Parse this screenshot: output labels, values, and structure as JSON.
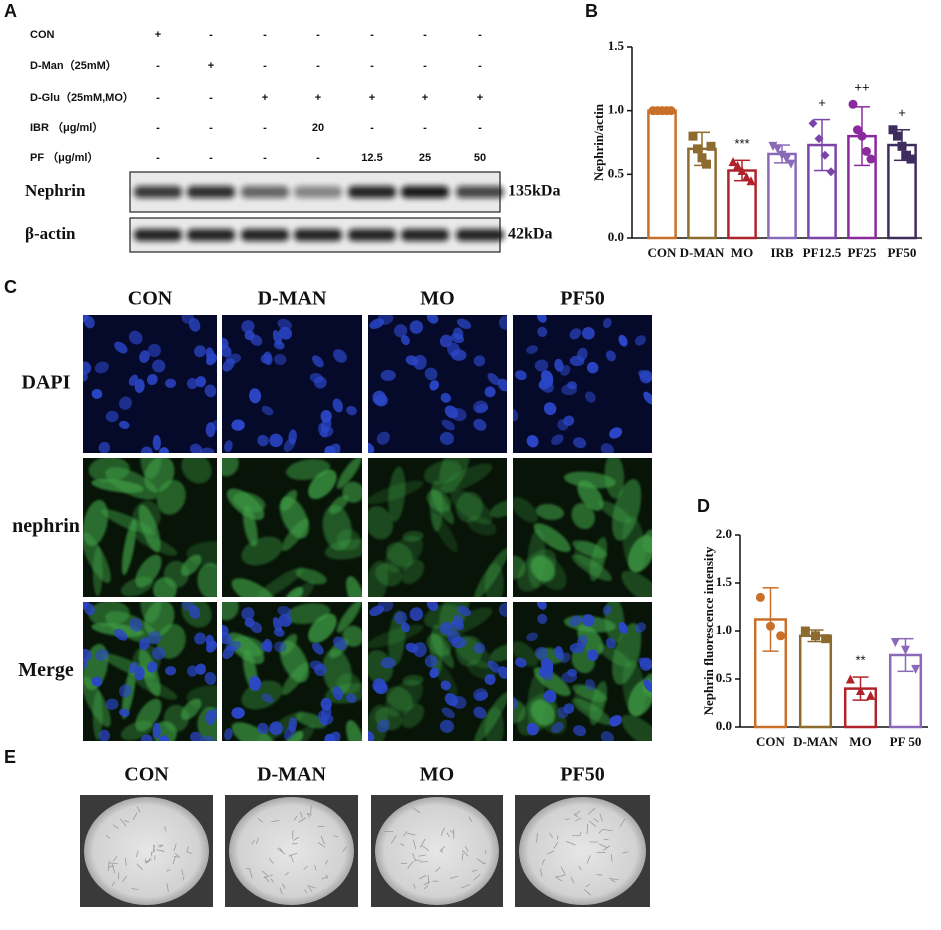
{
  "panel_a": {
    "label": "A",
    "treatments": [
      {
        "name": "CON",
        "cells": [
          "+",
          "-",
          "-",
          "-",
          "-",
          "-",
          "-"
        ]
      },
      {
        "name": "D-Man（25mM）",
        "cells": [
          "-",
          "+",
          "-",
          "-",
          "-",
          "-",
          "-"
        ]
      },
      {
        "name": "D-Glu（25mM,MO）",
        "cells": [
          "-",
          "-",
          "+",
          "+",
          "+",
          "+",
          "+"
        ]
      },
      {
        "name": "IBR （μg/ml）",
        "cells": [
          "-",
          "-",
          "-",
          "20",
          "-",
          "-",
          "-"
        ]
      },
      {
        "name": "PF （μg/ml）",
        "cells": [
          "-",
          "-",
          "-",
          "-",
          "12.5",
          "25",
          "50"
        ]
      }
    ],
    "blots": [
      {
        "name": "Nephrin",
        "size": "135kDa"
      },
      {
        "name": "β-actin",
        "size": "42kDa"
      }
    ]
  },
  "chart_data": [
    {
      "type": "bar",
      "panel": "B",
      "y_label": "Nephrin/actin",
      "categories": [
        "CON",
        "D-MAN",
        "MO",
        "IRB",
        "PF12.5",
        "PF25",
        "PF50"
      ],
      "values": [
        1.0,
        0.7,
        0.53,
        0.66,
        0.73,
        0.8,
        0.73
      ],
      "errors": [
        0.0,
        0.13,
        0.08,
        0.07,
        0.2,
        0.23,
        0.12
      ],
      "points": [
        [
          1,
          1,
          1,
          1,
          1
        ],
        [
          0.8,
          0.7,
          0.63,
          0.58,
          0.72
        ],
        [
          0.6,
          0.57,
          0.53,
          0.48,
          0.45
        ],
        [
          0.72,
          0.7,
          0.65,
          0.62,
          0.58
        ],
        [
          0.9,
          0.78,
          0.65,
          0.52
        ],
        [
          1.05,
          0.85,
          0.8,
          0.68,
          0.62
        ],
        [
          0.85,
          0.8,
          0.72,
          0.65,
          0.62
        ]
      ],
      "significance": [
        null,
        null,
        "***",
        null,
        "+",
        "++",
        "+"
      ],
      "colors": [
        "#c8702a",
        "#8d6b2f",
        "#b0232a",
        "#8a6ab8",
        "#7b45a8",
        "#8a2a9c",
        "#3f2c5e"
      ],
      "ylim": [
        0,
        1.5
      ],
      "yticks": [
        {
          "value": 0,
          "label": "0.0"
        },
        0.5,
        {
          "value": 1,
          "label": "1.0"
        },
        1.5
      ]
    },
    {
      "type": "bar",
      "panel": "D",
      "y_label": "Nephrin fluorescence intensity",
      "categories": [
        "CON",
        "D-MAN",
        "MO",
        "PF 50"
      ],
      "values": [
        1.12,
        0.95,
        0.4,
        0.75
      ],
      "errors": [
        0.33,
        0.06,
        0.12,
        0.17
      ],
      "points": [
        [
          1.35,
          1.05,
          0.95
        ],
        [
          1.0,
          0.95,
          0.92
        ],
        [
          0.5,
          0.38,
          0.33
        ],
        [
          0.88,
          0.8,
          0.6
        ]
      ],
      "significance": [
        null,
        null,
        "**",
        null
      ],
      "colors": [
        "#c8702a",
        "#8d6b2f",
        "#b0232a",
        "#8a6ab8"
      ],
      "ylim": [
        0,
        2
      ],
      "yticks": [
        {
          "value": 0,
          "label": "0.0"
        },
        0.5,
        {
          "value": 1,
          "label": "1.0"
        },
        1.5,
        {
          "value": 2,
          "label": "2.0"
        }
      ]
    }
  ],
  "panel_c": {
    "label": "C",
    "columns": [
      "CON",
      "D-MAN",
      "MO",
      "PF50"
    ],
    "rows": [
      "DAPI",
      "nephrin",
      "Merge"
    ]
  },
  "panel_e": {
    "label": "E",
    "columns": [
      "CON",
      "D-MAN",
      "MO",
      "PF50"
    ]
  }
}
